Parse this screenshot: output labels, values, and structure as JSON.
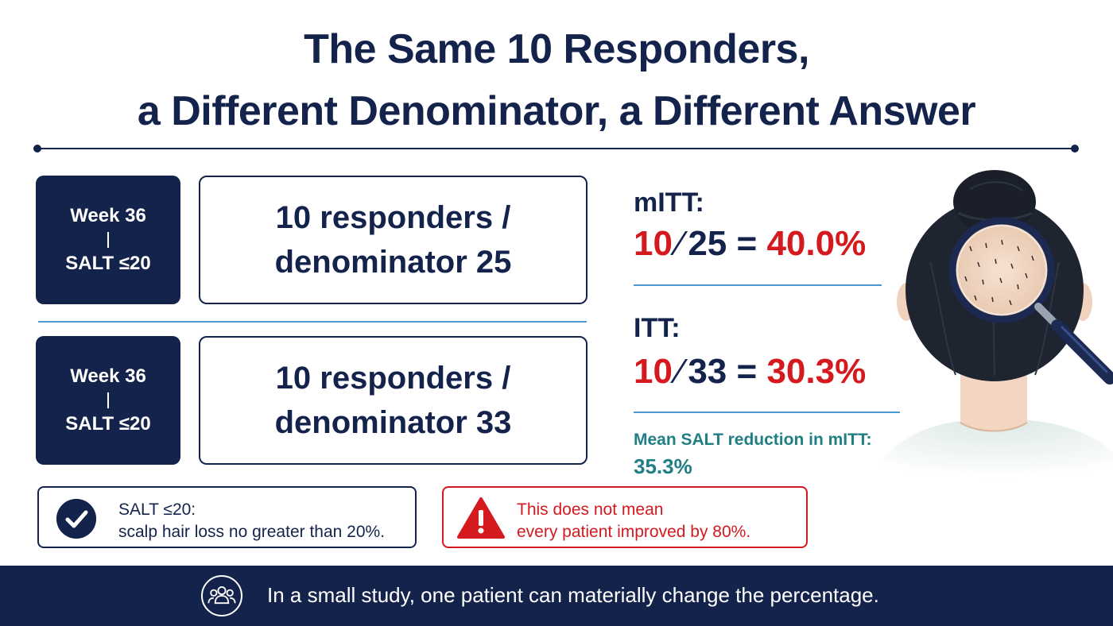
{
  "title": {
    "line1": "The Same 10 Responders,",
    "line2": "a Different Denominator, a Different Answer"
  },
  "rows": [
    {
      "week": "Week 36",
      "threshold": "SALT ≤20",
      "line1": "10 responders /",
      "line2": "denominator 25"
    },
    {
      "week": "Week 36",
      "threshold": "SALT ≤20",
      "line1": "10 responders /",
      "line2": "denominator 33"
    }
  ],
  "metrics": {
    "mitt": {
      "label": "mITT:",
      "numerator": "10",
      "denominator": "25",
      "equals": "=",
      "result": "40.0%"
    },
    "itt": {
      "label": "ITT:",
      "numerator": "10",
      "denominator": "33",
      "equals": "=",
      "result": "30.3%"
    },
    "mean": {
      "label": "Mean SALT reduction in mITT:",
      "value": "35.3%"
    }
  },
  "note": {
    "line1": "SALT ≤20:",
    "line2": "scalp hair loss no greater than 20%."
  },
  "warning": {
    "line1": "This does not mean",
    "line2": "every patient improved by 80%."
  },
  "footer": {
    "text": "In a small study, one patient can materially change the percentage."
  },
  "icons": {
    "check": "check-icon",
    "warning": "warning-icon",
    "group": "group-icon",
    "illustration": "head-magnifier-illustration"
  },
  "colors": {
    "navy": "#14234b",
    "red": "#d4191f",
    "teal": "#1f7f85",
    "accent_line": "#4a9ad4"
  }
}
